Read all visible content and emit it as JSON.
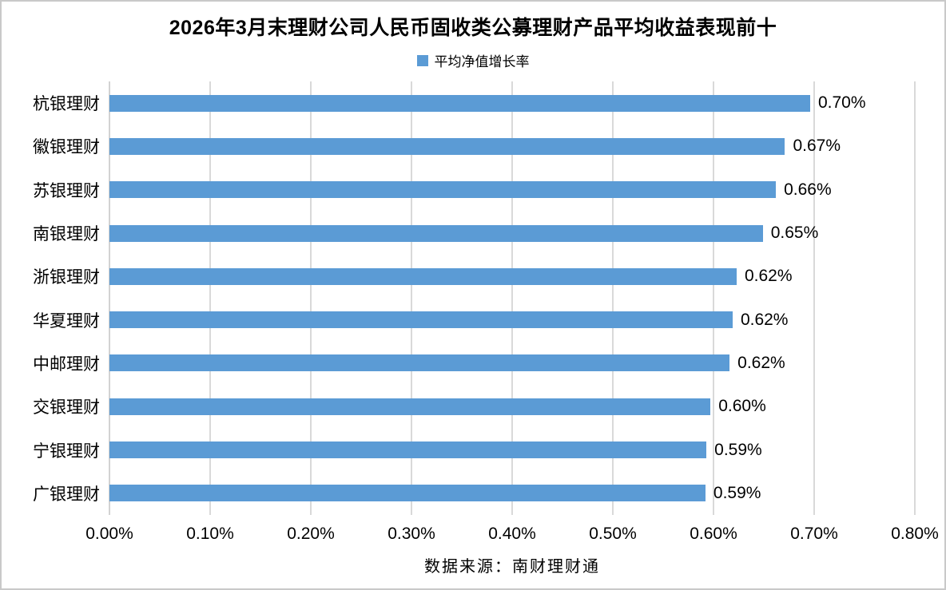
{
  "header": {
    "title": "2026年3月末理财公司人民币固收类公募理财产品平均收益表现前十"
  },
  "legend": {
    "label": "平均净值增长率"
  },
  "footer": {
    "source": "数据来源：南财理财通"
  },
  "colors": {
    "bar": "#5B9BD5",
    "legend_marker": "#5B9BD5",
    "gridline": "#D9D9D9",
    "axis_line": "#D2D2D2",
    "text": "#000000",
    "background": "#FFFFFF",
    "canvas_border": "#C9C9C9"
  },
  "chart_data": {
    "type": "bar",
    "orientation": "horizontal",
    "title": "2026年3月末理财公司人民币固收类公募理财产品平均收益表现前十",
    "legend_entries": [
      "平均净值增长率"
    ],
    "legend_position": "top",
    "categories": [
      "杭银理财",
      "徽银理财",
      "苏银理财",
      "南银理财",
      "浙银理财",
      "华夏理财",
      "中邮理财",
      "交银理财",
      "宁银理财",
      "广银理财"
    ],
    "values_percent": [
      0.7,
      0.67,
      0.66,
      0.65,
      0.62,
      0.62,
      0.62,
      0.6,
      0.59,
      0.59
    ],
    "value_labels": [
      "0.70%",
      "0.67%",
      "0.66%",
      "0.65%",
      "0.62%",
      "0.62%",
      "0.62%",
      "0.60%",
      "0.59%",
      "0.59%"
    ],
    "bar_lengths_percent_estimated": [
      0.696,
      0.671,
      0.662,
      0.649,
      0.623,
      0.619,
      0.616,
      0.597,
      0.593,
      0.592
    ],
    "xlabel": "",
    "ylabel": "",
    "xlim_percent": [
      0.0,
      0.8
    ],
    "x_tick_step_percent": 0.1,
    "x_tick_labels": [
      "0.00%",
      "0.10%",
      "0.20%",
      "0.30%",
      "0.40%",
      "0.50%",
      "0.60%",
      "0.70%",
      "0.80%"
    ],
    "grid": "vertical-only",
    "data_source_note": "数据来源：南财理财通"
  }
}
